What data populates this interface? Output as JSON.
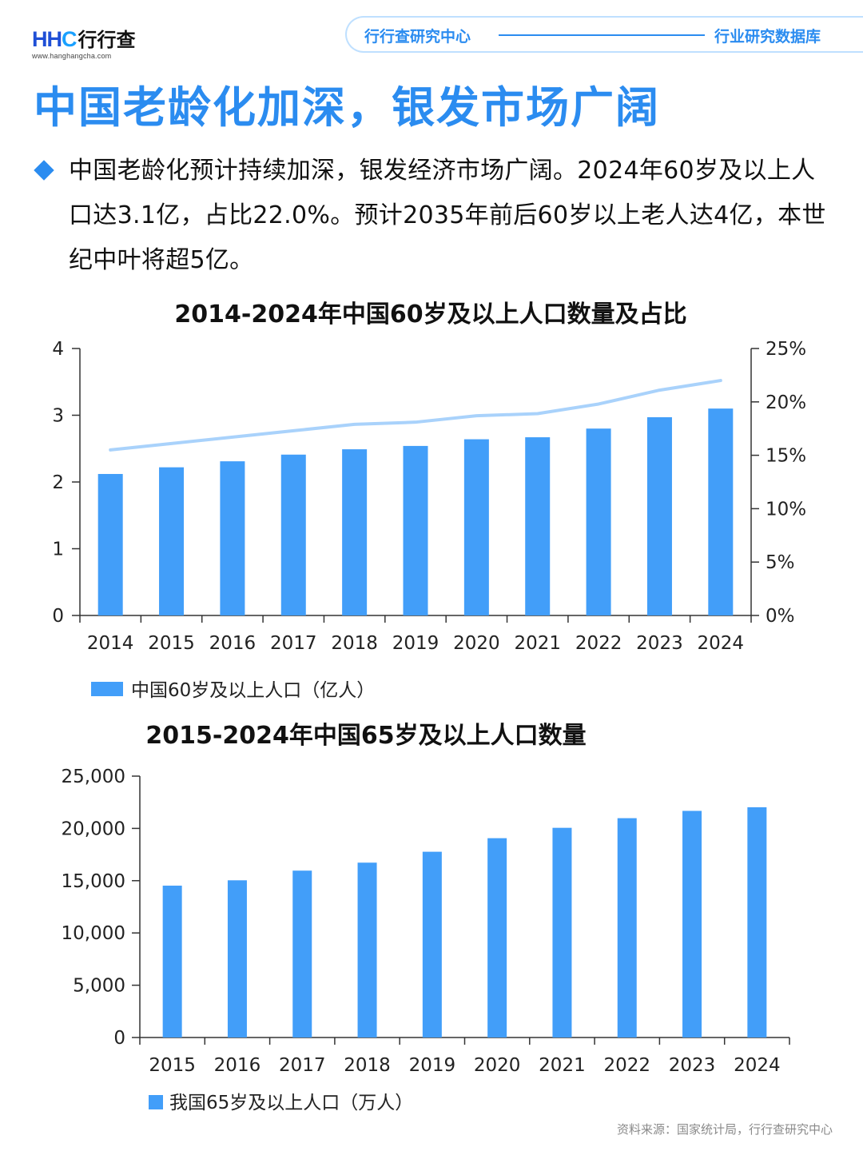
{
  "header": {
    "logo_mark_a": "HH",
    "logo_mark_b": "C",
    "logo_name": "行行查",
    "logo_url": "www.hanghangcha.com",
    "left_label": "行行查研究中心",
    "right_label": "行业研究数据库"
  },
  "page_title": "中国老龄化加深，银发市场广阔",
  "paragraph": "中国老龄化预计持续加深，银发经济市场广阔。2024年60岁及以上人口达3.1亿，占比22.0%。预计2035年前后60岁以上老人达4亿，本世纪中叶将超5亿。",
  "source": "资料来源：国家统计局，行行查研究中心",
  "colors": {
    "accent": "#2b8cf0",
    "bar": "#429ef9",
    "line": "#a9d2fb"
  },
  "chart_data": [
    {
      "type": "bar",
      "title": "2014-2024年中国60岁及以上人口数量及占比",
      "categories": [
        "2014",
        "2015",
        "2016",
        "2017",
        "2018",
        "2019",
        "2020",
        "2021",
        "2022",
        "2023",
        "2024"
      ],
      "series": [
        {
          "name": "中国60岁及以上人口（亿人）",
          "type": "bar",
          "axis": "left",
          "values": [
            2.12,
            2.22,
            2.31,
            2.41,
            2.49,
            2.54,
            2.64,
            2.67,
            2.8,
            2.97,
            3.1
          ]
        },
        {
          "type": "line",
          "axis": "right",
          "values": [
            15.5,
            16.1,
            16.7,
            17.3,
            17.9,
            18.1,
            18.7,
            18.9,
            19.8,
            21.1,
            22.0
          ]
        }
      ],
      "y_left": {
        "min": 0,
        "max": 4,
        "ticks": [
          "0",
          "1",
          "2",
          "3",
          "4"
        ]
      },
      "y_right": {
        "min": 0,
        "max": 25,
        "ticks": [
          "0%",
          "5%",
          "10%",
          "15%",
          "20%",
          "25%"
        ]
      },
      "grid": false,
      "legend": "bottom-left"
    },
    {
      "type": "bar",
      "title": "2015-2024年中国65岁及以上人口数量",
      "categories": [
        "2015",
        "2016",
        "2017",
        "2018",
        "2019",
        "2020",
        "2021",
        "2022",
        "2023",
        "2024"
      ],
      "series": [
        {
          "name": "我国65岁及以上人口（万人）",
          "values": [
            14524,
            15037,
            15961,
            16724,
            17767,
            19064,
            20056,
            20978,
            21676,
            22023
          ]
        }
      ],
      "y": {
        "min": 0,
        "max": 25000,
        "ticks": [
          "0",
          "5,000",
          "10,000",
          "15,000",
          "20,000",
          "25,000"
        ]
      },
      "grid": false,
      "legend": "bottom-left"
    }
  ]
}
